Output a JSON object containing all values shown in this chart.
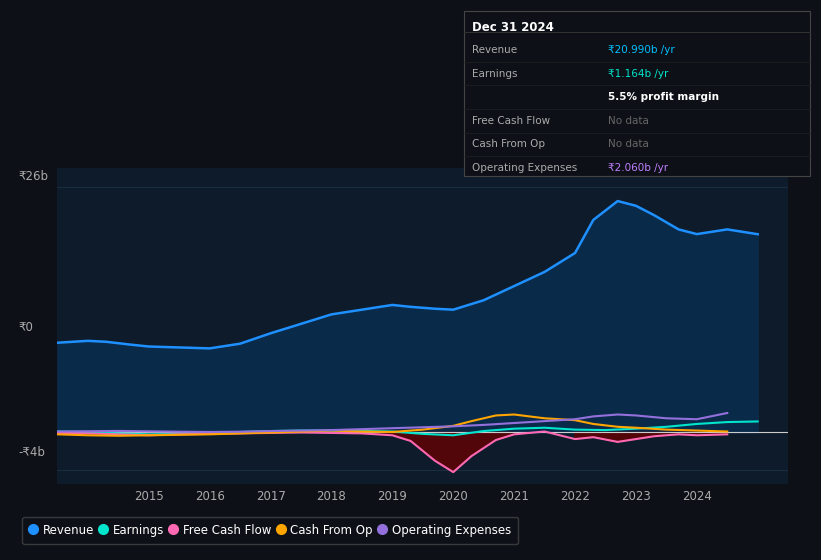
{
  "bg_color": "#0d1117",
  "plot_bg_color": "#0d1b2a",
  "ylim": [
    -5500000000,
    28000000000
  ],
  "xlim": [
    2013.5,
    2025.5
  ],
  "xlabel_years": [
    2015,
    2016,
    2017,
    2018,
    2019,
    2020,
    2021,
    2022,
    2023,
    2024
  ],
  "legend": [
    {
      "label": "Revenue",
      "color": "#1e90ff"
    },
    {
      "label": "Earnings",
      "color": "#00e5cc"
    },
    {
      "label": "Free Cash Flow",
      "color": "#ff69b4"
    },
    {
      "label": "Cash From Op",
      "color": "#ffa500"
    },
    {
      "label": "Operating Expenses",
      "color": "#9370db"
    }
  ],
  "revenue_x": [
    2013.5,
    2014,
    2014.3,
    2014.7,
    2015,
    2015.5,
    2016,
    2016.5,
    2017,
    2017.5,
    2018,
    2018.5,
    2019,
    2019.3,
    2019.7,
    2020,
    2020.5,
    2021,
    2021.5,
    2022,
    2022.3,
    2022.7,
    2023,
    2023.3,
    2023.7,
    2024,
    2024.5,
    2025
  ],
  "revenue_y": [
    9500000000,
    9700000000,
    9600000000,
    9300000000,
    9100000000,
    9000000000,
    8900000000,
    9400000000,
    10500000000,
    11500000000,
    12500000000,
    13000000000,
    13500000000,
    13300000000,
    13100000000,
    13000000000,
    14000000000,
    15500000000,
    17000000000,
    19000000000,
    22500000000,
    24500000000,
    24000000000,
    23000000000,
    21500000000,
    21000000000,
    21500000000,
    20990000000
  ],
  "earnings_x": [
    2013.5,
    2014,
    2014.5,
    2015,
    2015.5,
    2016,
    2016.5,
    2017,
    2017.5,
    2018,
    2018.5,
    2019,
    2019.5,
    2020,
    2020.5,
    2021,
    2021.5,
    2022,
    2022.5,
    2023,
    2023.5,
    2024,
    2024.5,
    2025
  ],
  "earnings_y": [
    100000000,
    50000000,
    -100000000,
    -200000000,
    -150000000,
    -100000000,
    50000000,
    150000000,
    200000000,
    200000000,
    150000000,
    100000000,
    -150000000,
    -300000000,
    150000000,
    400000000,
    500000000,
    300000000,
    250000000,
    400000000,
    600000000,
    900000000,
    1100000000,
    1164000000
  ],
  "fcf_x": [
    2013.5,
    2014,
    2014.5,
    2015,
    2015.5,
    2016,
    2016.5,
    2017,
    2017.5,
    2018,
    2018.5,
    2019,
    2019.3,
    2019.7,
    2020,
    2020.3,
    2020.7,
    2021,
    2021.5,
    2022,
    2022.3,
    2022.7,
    2023,
    2023.3,
    2023.7,
    2024,
    2024.5
  ],
  "fcf_y": [
    -50000000,
    -100000000,
    -200000000,
    -300000000,
    -200000000,
    -150000000,
    -100000000,
    -50000000,
    0,
    -50000000,
    -100000000,
    -300000000,
    -900000000,
    -3000000000,
    -4200000000,
    -2500000000,
    -800000000,
    -200000000,
    100000000,
    -700000000,
    -500000000,
    -1000000000,
    -700000000,
    -400000000,
    -200000000,
    -300000000,
    -200000000
  ],
  "cop_x": [
    2013.5,
    2014,
    2014.5,
    2015,
    2015.5,
    2016,
    2016.5,
    2017,
    2017.5,
    2018,
    2018.5,
    2019,
    2019.5,
    2020,
    2020.3,
    2020.7,
    2021,
    2021.5,
    2022,
    2022.3,
    2022.7,
    2023,
    2023.5,
    2024,
    2024.5
  ],
  "cop_y": [
    -200000000,
    -300000000,
    -350000000,
    -300000000,
    -250000000,
    -200000000,
    -100000000,
    0,
    100000000,
    200000000,
    100000000,
    50000000,
    300000000,
    700000000,
    1200000000,
    1800000000,
    1900000000,
    1500000000,
    1300000000,
    900000000,
    600000000,
    500000000,
    300000000,
    200000000,
    100000000
  ],
  "oe_x": [
    2013.5,
    2014,
    2014.5,
    2015,
    2015.5,
    2016,
    2016.5,
    2017,
    2017.5,
    2018,
    2018.5,
    2019,
    2019.5,
    2020,
    2020.5,
    2021,
    2021.5,
    2022,
    2022.3,
    2022.7,
    2023,
    2023.5,
    2024,
    2024.5
  ],
  "oe_y": [
    100000000,
    130000000,
    160000000,
    120000000,
    80000000,
    50000000,
    80000000,
    150000000,
    200000000,
    250000000,
    350000000,
    450000000,
    550000000,
    650000000,
    800000000,
    1000000000,
    1200000000,
    1400000000,
    1700000000,
    1900000000,
    1800000000,
    1500000000,
    1400000000,
    2060000000
  ]
}
